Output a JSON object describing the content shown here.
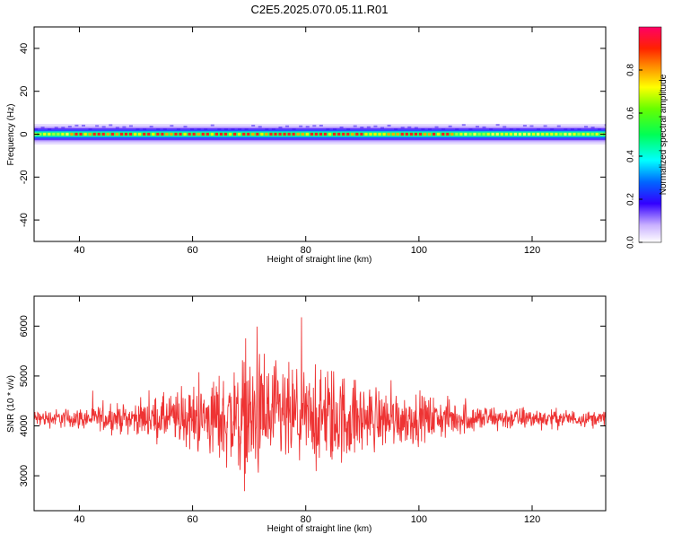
{
  "figure": {
    "title": "C2E5.2025.070.05.11.R01"
  },
  "chart_data": [
    {
      "type": "heatmap",
      "xlabel": "Height of straight line (km)",
      "ylabel": "Frequency (Hz)",
      "xlim": [
        32,
        133
      ],
      "ylim": [
        -50,
        50
      ],
      "xticks": [
        40,
        60,
        80,
        100,
        120
      ],
      "yticks": [
        -40,
        -20,
        0,
        20,
        40
      ],
      "colorbar": {
        "label": "Normalized spectral amplitude",
        "range": [
          0,
          1
        ],
        "ticks": [
          "0.0",
          "0.2",
          "0.4",
          "0.6",
          "0.8"
        ]
      },
      "description_of_band": {
        "center_frequency": 0,
        "half_width_hz": 3,
        "peak_region_km": [
          38,
          106
        ]
      },
      "grid": false
    },
    {
      "type": "line",
      "xlabel": "Height of straight line (km)",
      "ylabel": "SNR (10 * v/v)",
      "xlim": [
        32,
        133
      ],
      "ylim": [
        2300,
        6600
      ],
      "xticks": [
        40,
        60,
        80,
        100,
        120
      ],
      "yticks": [
        3000,
        4000,
        5000,
        6000
      ],
      "series": [
        {
          "color": "#ee3333",
          "baseline": 4150,
          "envelope_km": [
            32,
            40,
            50,
            60,
            65,
            70,
            75,
            80,
            85,
            90,
            100,
            110,
            120,
            133
          ],
          "envelope_half_range": [
            250,
            300,
            450,
            900,
            1300,
            1900,
            1600,
            1300,
            1500,
            1000,
            700,
            400,
            300,
            200
          ]
        }
      ],
      "grid": false
    }
  ]
}
